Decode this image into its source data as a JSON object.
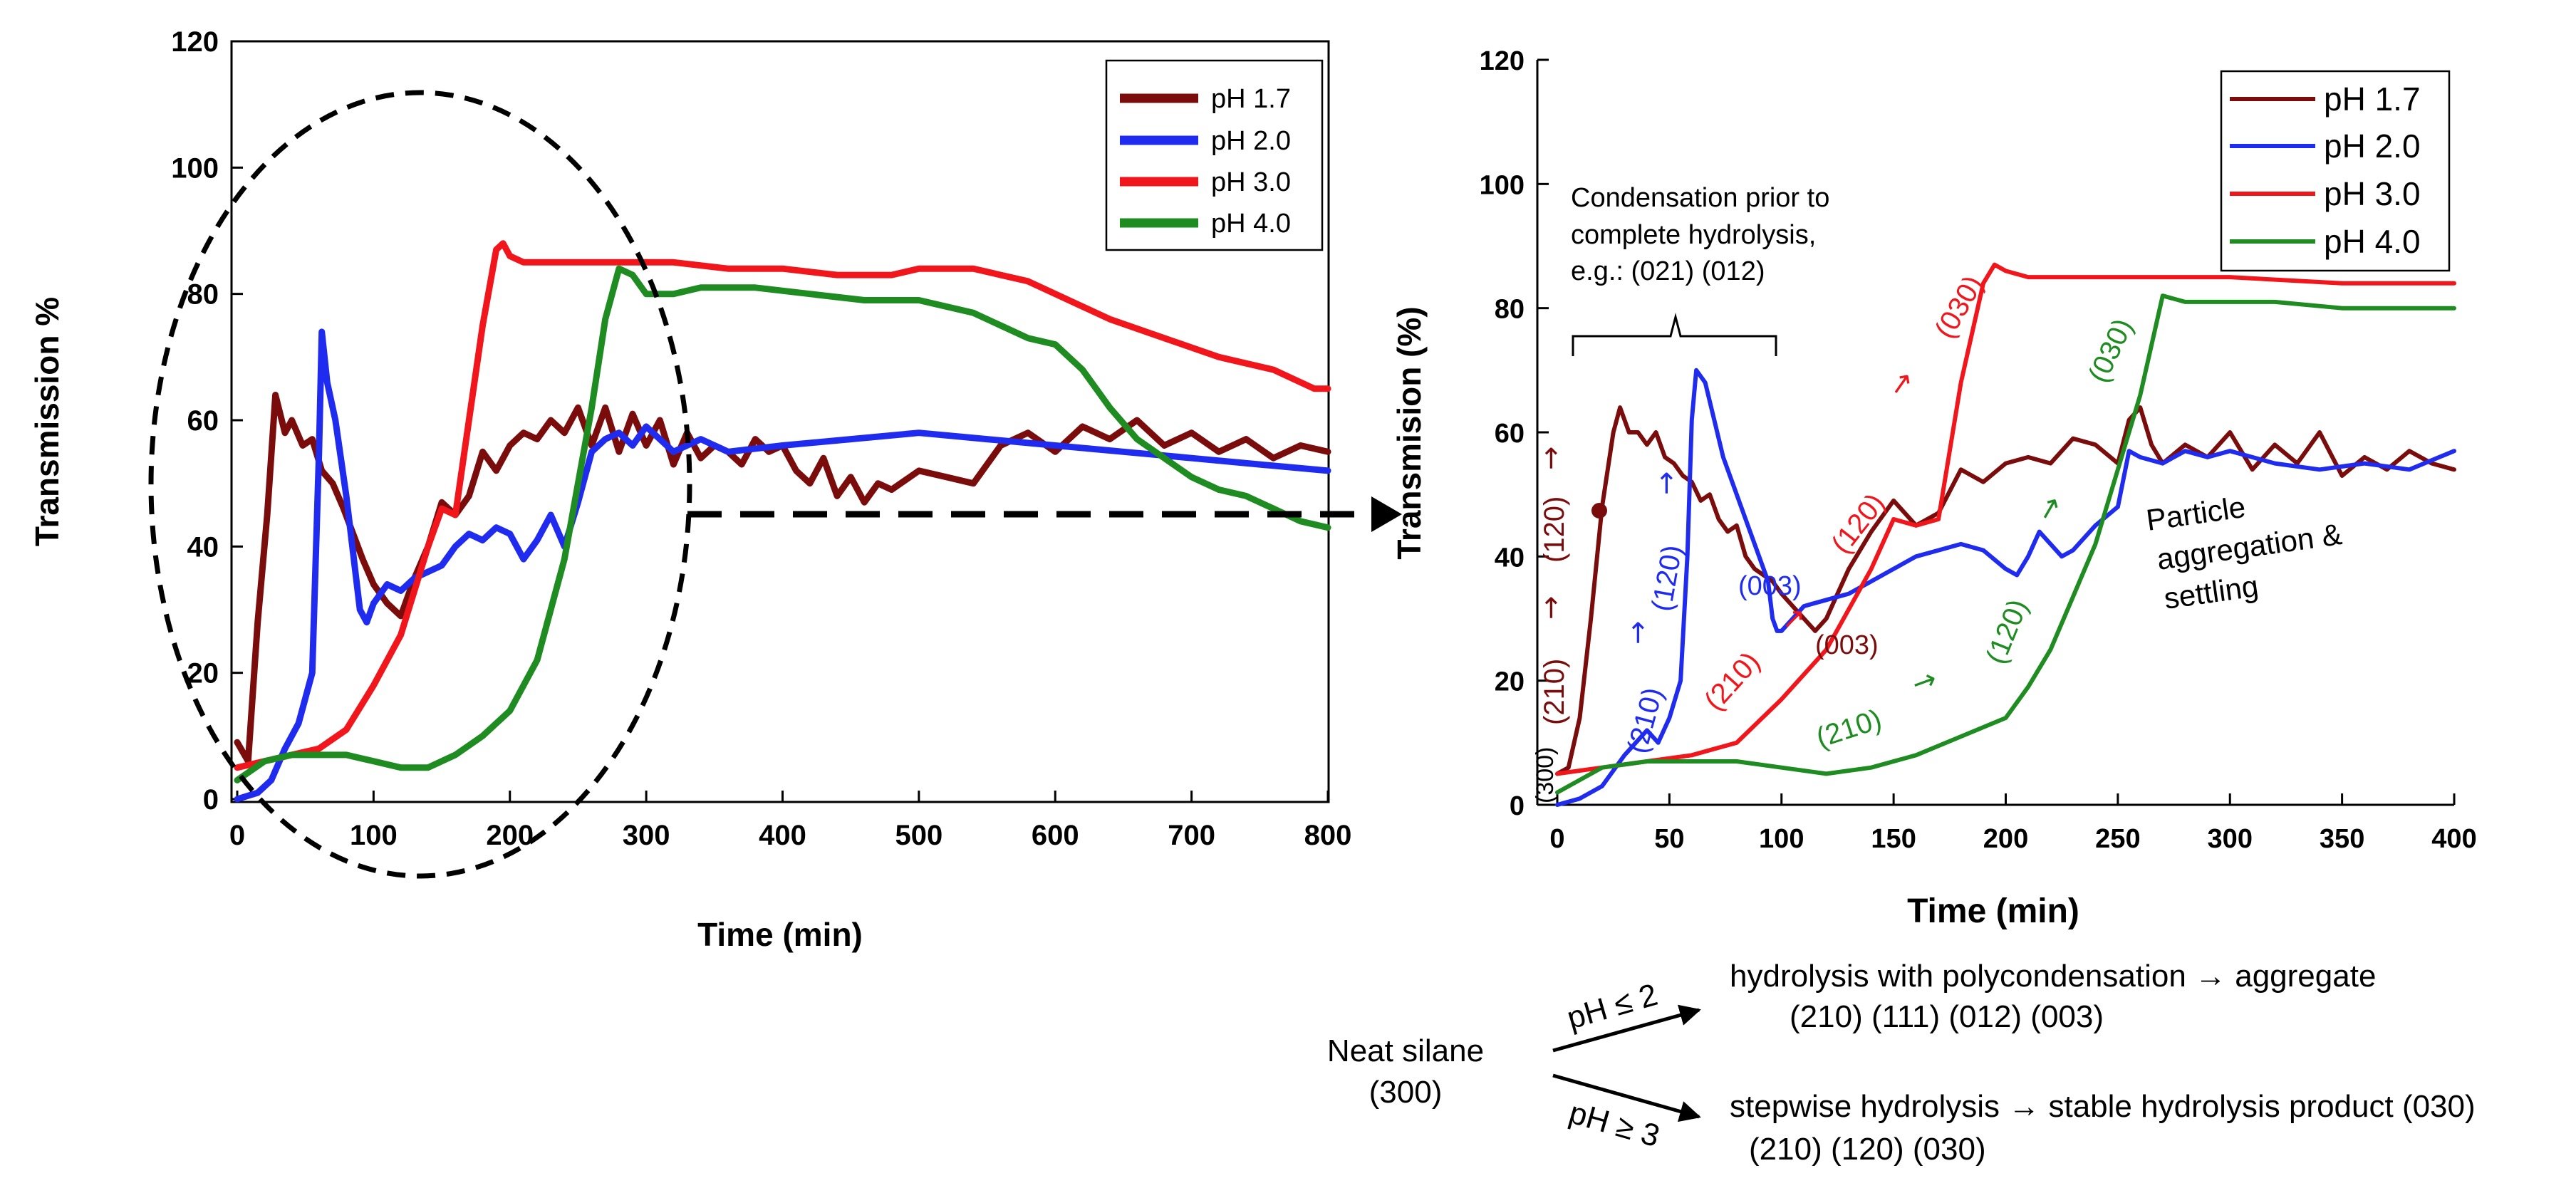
{
  "colors": {
    "ph17": "#7b0c0c",
    "ph20": "#1f2cf0",
    "ph30": "#f0161b",
    "ph40": "#1f8c22"
  },
  "chart_data": [
    {
      "type": "line",
      "title": "",
      "xlabel": "Time (min)",
      "ylabel": "Transmission %",
      "xlim": [
        0,
        800
      ],
      "ylim": [
        0,
        120
      ],
      "xticks": [
        0,
        100,
        200,
        300,
        400,
        500,
        600,
        700,
        800
      ],
      "yticks": [
        0,
        20,
        40,
        60,
        80,
        100,
        120
      ],
      "legend_position": "top-right",
      "series": [
        {
          "name": "pH 1.7",
          "color": "#7b0c0c",
          "x": [
            0,
            8,
            15,
            22,
            28,
            35,
            40,
            48,
            55,
            62,
            70,
            78,
            85,
            92,
            100,
            110,
            120,
            130,
            140,
            150,
            160,
            170,
            180,
            190,
            200,
            210,
            220,
            230,
            240,
            250,
            260,
            270,
            280,
            290,
            300,
            310,
            320,
            330,
            340,
            350,
            360,
            370,
            380,
            390,
            400,
            410,
            420,
            430,
            440,
            450,
            460,
            470,
            480,
            500,
            520,
            540,
            560,
            580,
            600,
            620,
            640,
            660,
            680,
            700,
            720,
            740,
            760,
            780,
            800
          ],
          "y": [
            9,
            6,
            28,
            45,
            64,
            58,
            60,
            56,
            57,
            52,
            50,
            46,
            42,
            38,
            34,
            31,
            29,
            35,
            40,
            47,
            45,
            48,
            55,
            52,
            56,
            58,
            57,
            60,
            58,
            62,
            56,
            62,
            55,
            61,
            56,
            60,
            53,
            58,
            54,
            56,
            55,
            53,
            57,
            55,
            56,
            52,
            50,
            54,
            48,
            51,
            47,
            50,
            49,
            52,
            51,
            50,
            56,
            58,
            55,
            59,
            57,
            60,
            56,
            58,
            55,
            57,
            54,
            56,
            55
          ]
        },
        {
          "name": "pH 2.0",
          "color": "#1f2cf0",
          "x": [
            0,
            15,
            25,
            35,
            45,
            55,
            60,
            62,
            66,
            72,
            80,
            90,
            95,
            100,
            110,
            120,
            130,
            140,
            150,
            160,
            170,
            180,
            190,
            200,
            210,
            220,
            230,
            240,
            250,
            260,
            270,
            280,
            290,
            300,
            320,
            340,
            360,
            400,
            450,
            500,
            550,
            600,
            650,
            700,
            750,
            800
          ],
          "y": [
            0,
            1,
            3,
            8,
            12,
            20,
            55,
            74,
            66,
            60,
            48,
            30,
            28,
            31,
            34,
            33,
            35,
            36,
            37,
            40,
            42,
            41,
            43,
            42,
            38,
            41,
            45,
            40,
            47,
            55,
            57,
            58,
            56,
            59,
            55,
            57,
            55,
            56,
            57,
            58,
            57,
            56,
            55,
            54,
            53,
            52
          ]
        },
        {
          "name": "pH 3.0",
          "color": "#f0161b",
          "x": [
            0,
            20,
            40,
            60,
            80,
            100,
            120,
            140,
            150,
            160,
            170,
            180,
            190,
            195,
            200,
            210,
            220,
            240,
            280,
            320,
            360,
            400,
            440,
            480,
            500,
            520,
            540,
            560,
            580,
            600,
            640,
            680,
            720,
            760,
            780,
            790,
            800
          ],
          "y": [
            5,
            6,
            7,
            8,
            11,
            18,
            26,
            40,
            46,
            45,
            60,
            75,
            87,
            88,
            86,
            85,
            85,
            85,
            85,
            85,
            84,
            84,
            83,
            83,
            84,
            84,
            84,
            83,
            82,
            80,
            76,
            73,
            70,
            68,
            66,
            65,
            65
          ]
        },
        {
          "name": "pH 4.0",
          "color": "#1f8c22",
          "x": [
            0,
            20,
            40,
            60,
            80,
            100,
            120,
            140,
            160,
            180,
            200,
            220,
            240,
            250,
            260,
            270,
            280,
            290,
            300,
            320,
            340,
            380,
            420,
            460,
            500,
            540,
            560,
            580,
            600,
            620,
            640,
            660,
            680,
            700,
            720,
            740,
            760,
            780,
            800
          ],
          "y": [
            3,
            6,
            7,
            7,
            7,
            6,
            5,
            5,
            7,
            10,
            14,
            22,
            38,
            50,
            62,
            76,
            84,
            83,
            80,
            80,
            81,
            81,
            80,
            79,
            79,
            77,
            75,
            73,
            72,
            68,
            62,
            57,
            54,
            51,
            49,
            48,
            46,
            44,
            43
          ]
        }
      ]
    },
    {
      "type": "line",
      "title": "",
      "xlabel": "Time (min)",
      "ylabel": "Transmision (%)",
      "xlim": [
        0,
        400
      ],
      "ylim": [
        0,
        120
      ],
      "xticks": [
        0,
        50,
        100,
        150,
        200,
        250,
        300,
        350,
        400
      ],
      "yticks": [
        0,
        20,
        40,
        60,
        80,
        100,
        120
      ],
      "legend_position": "top-right",
      "series": [
        {
          "name": "pH 1.7",
          "color": "#7b0c0c",
          "x": [
            0,
            5,
            10,
            15,
            20,
            25,
            28,
            32,
            36,
            40,
            44,
            48,
            52,
            56,
            60,
            64,
            68,
            72,
            76,
            80,
            84,
            88,
            92,
            96,
            100,
            105,
            110,
            115,
            120,
            125,
            130,
            140,
            150,
            160,
            170,
            180,
            190,
            200,
            210,
            220,
            230,
            240,
            250,
            255,
            260,
            265,
            270,
            280,
            290,
            300,
            310,
            320,
            330,
            340,
            350,
            360,
            370,
            380,
            390,
            400
          ],
          "y": [
            5,
            6,
            14,
            30,
            48,
            60,
            64,
            60,
            60,
            58,
            60,
            56,
            55,
            53,
            52,
            49,
            50,
            46,
            44,
            45,
            40,
            38,
            37,
            36,
            34,
            32,
            30,
            28,
            30,
            34,
            38,
            44,
            49,
            45,
            47,
            54,
            52,
            55,
            56,
            55,
            59,
            58,
            55,
            62,
            64,
            58,
            55,
            58,
            56,
            60,
            54,
            58,
            55,
            60,
            53,
            56,
            54,
            57,
            55,
            54
          ]
        },
        {
          "name": "pH 2.0",
          "color": "#1f2cf0",
          "x": [
            0,
            10,
            20,
            30,
            40,
            45,
            50,
            55,
            58,
            60,
            62,
            66,
            70,
            74,
            78,
            82,
            86,
            90,
            94,
            96,
            98,
            100,
            110,
            120,
            130,
            140,
            150,
            160,
            170,
            180,
            190,
            200,
            205,
            210,
            215,
            220,
            225,
            230,
            240,
            250,
            255,
            260,
            270,
            280,
            290,
            300,
            320,
            340,
            360,
            380,
            400
          ],
          "y": [
            0,
            1,
            3,
            8,
            12,
            10,
            14,
            20,
            40,
            62,
            70,
            68,
            62,
            56,
            52,
            48,
            44,
            40,
            36,
            30,
            28,
            28,
            32,
            33,
            34,
            36,
            38,
            40,
            41,
            42,
            41,
            38,
            37,
            40,
            44,
            42,
            40,
            41,
            45,
            48,
            57,
            56,
            55,
            57,
            56,
            57,
            55,
            54,
            55,
            54,
            57
          ]
        },
        {
          "name": "pH 3.0",
          "color": "#f0161b",
          "x": [
            0,
            20,
            40,
            60,
            80,
            100,
            120,
            140,
            150,
            160,
            170,
            180,
            190,
            195,
            200,
            210,
            230,
            260,
            300,
            350,
            400
          ],
          "y": [
            5,
            6,
            7,
            8,
            10,
            17,
            25,
            38,
            46,
            45,
            46,
            68,
            84,
            87,
            86,
            85,
            85,
            85,
            85,
            84,
            84
          ]
        },
        {
          "name": "pH 4.0",
          "color": "#1f8c22",
          "x": [
            0,
            20,
            40,
            60,
            80,
            100,
            120,
            140,
            160,
            180,
            200,
            210,
            220,
            240,
            260,
            270,
            280,
            300,
            320,
            350,
            400
          ],
          "y": [
            2,
            6,
            7,
            7,
            7,
            6,
            5,
            6,
            8,
            11,
            14,
            19,
            25,
            42,
            66,
            82,
            81,
            81,
            81,
            80,
            80
          ]
        }
      ],
      "annotations": [
        "Condensation prior to",
        "complete hydrolysis,",
        "e.g.: (021) (012)",
        "Particle",
        "aggregation &",
        "settling",
        "(300)",
        "(210)",
        "(120)",
        "(210)",
        "(120)",
        "(003)",
        "(210)",
        "(120)",
        "(030)",
        "(003)",
        "(210)",
        "(120)",
        "(030)"
      ]
    }
  ],
  "scheme": {
    "start_line1": "Neat silane",
    "start_line2": "(300)",
    "upper_condition": "pH ≤ 2",
    "upper_line1": "hydrolysis with polycondensation → aggregate",
    "upper_line2": "(210) (111) (012) (003)",
    "lower_condition": "pH ≥ 3",
    "lower_line1": "stepwise hydrolysis → stable hydrolysis product (030)",
    "lower_line2": "(210) (120) (030)"
  }
}
